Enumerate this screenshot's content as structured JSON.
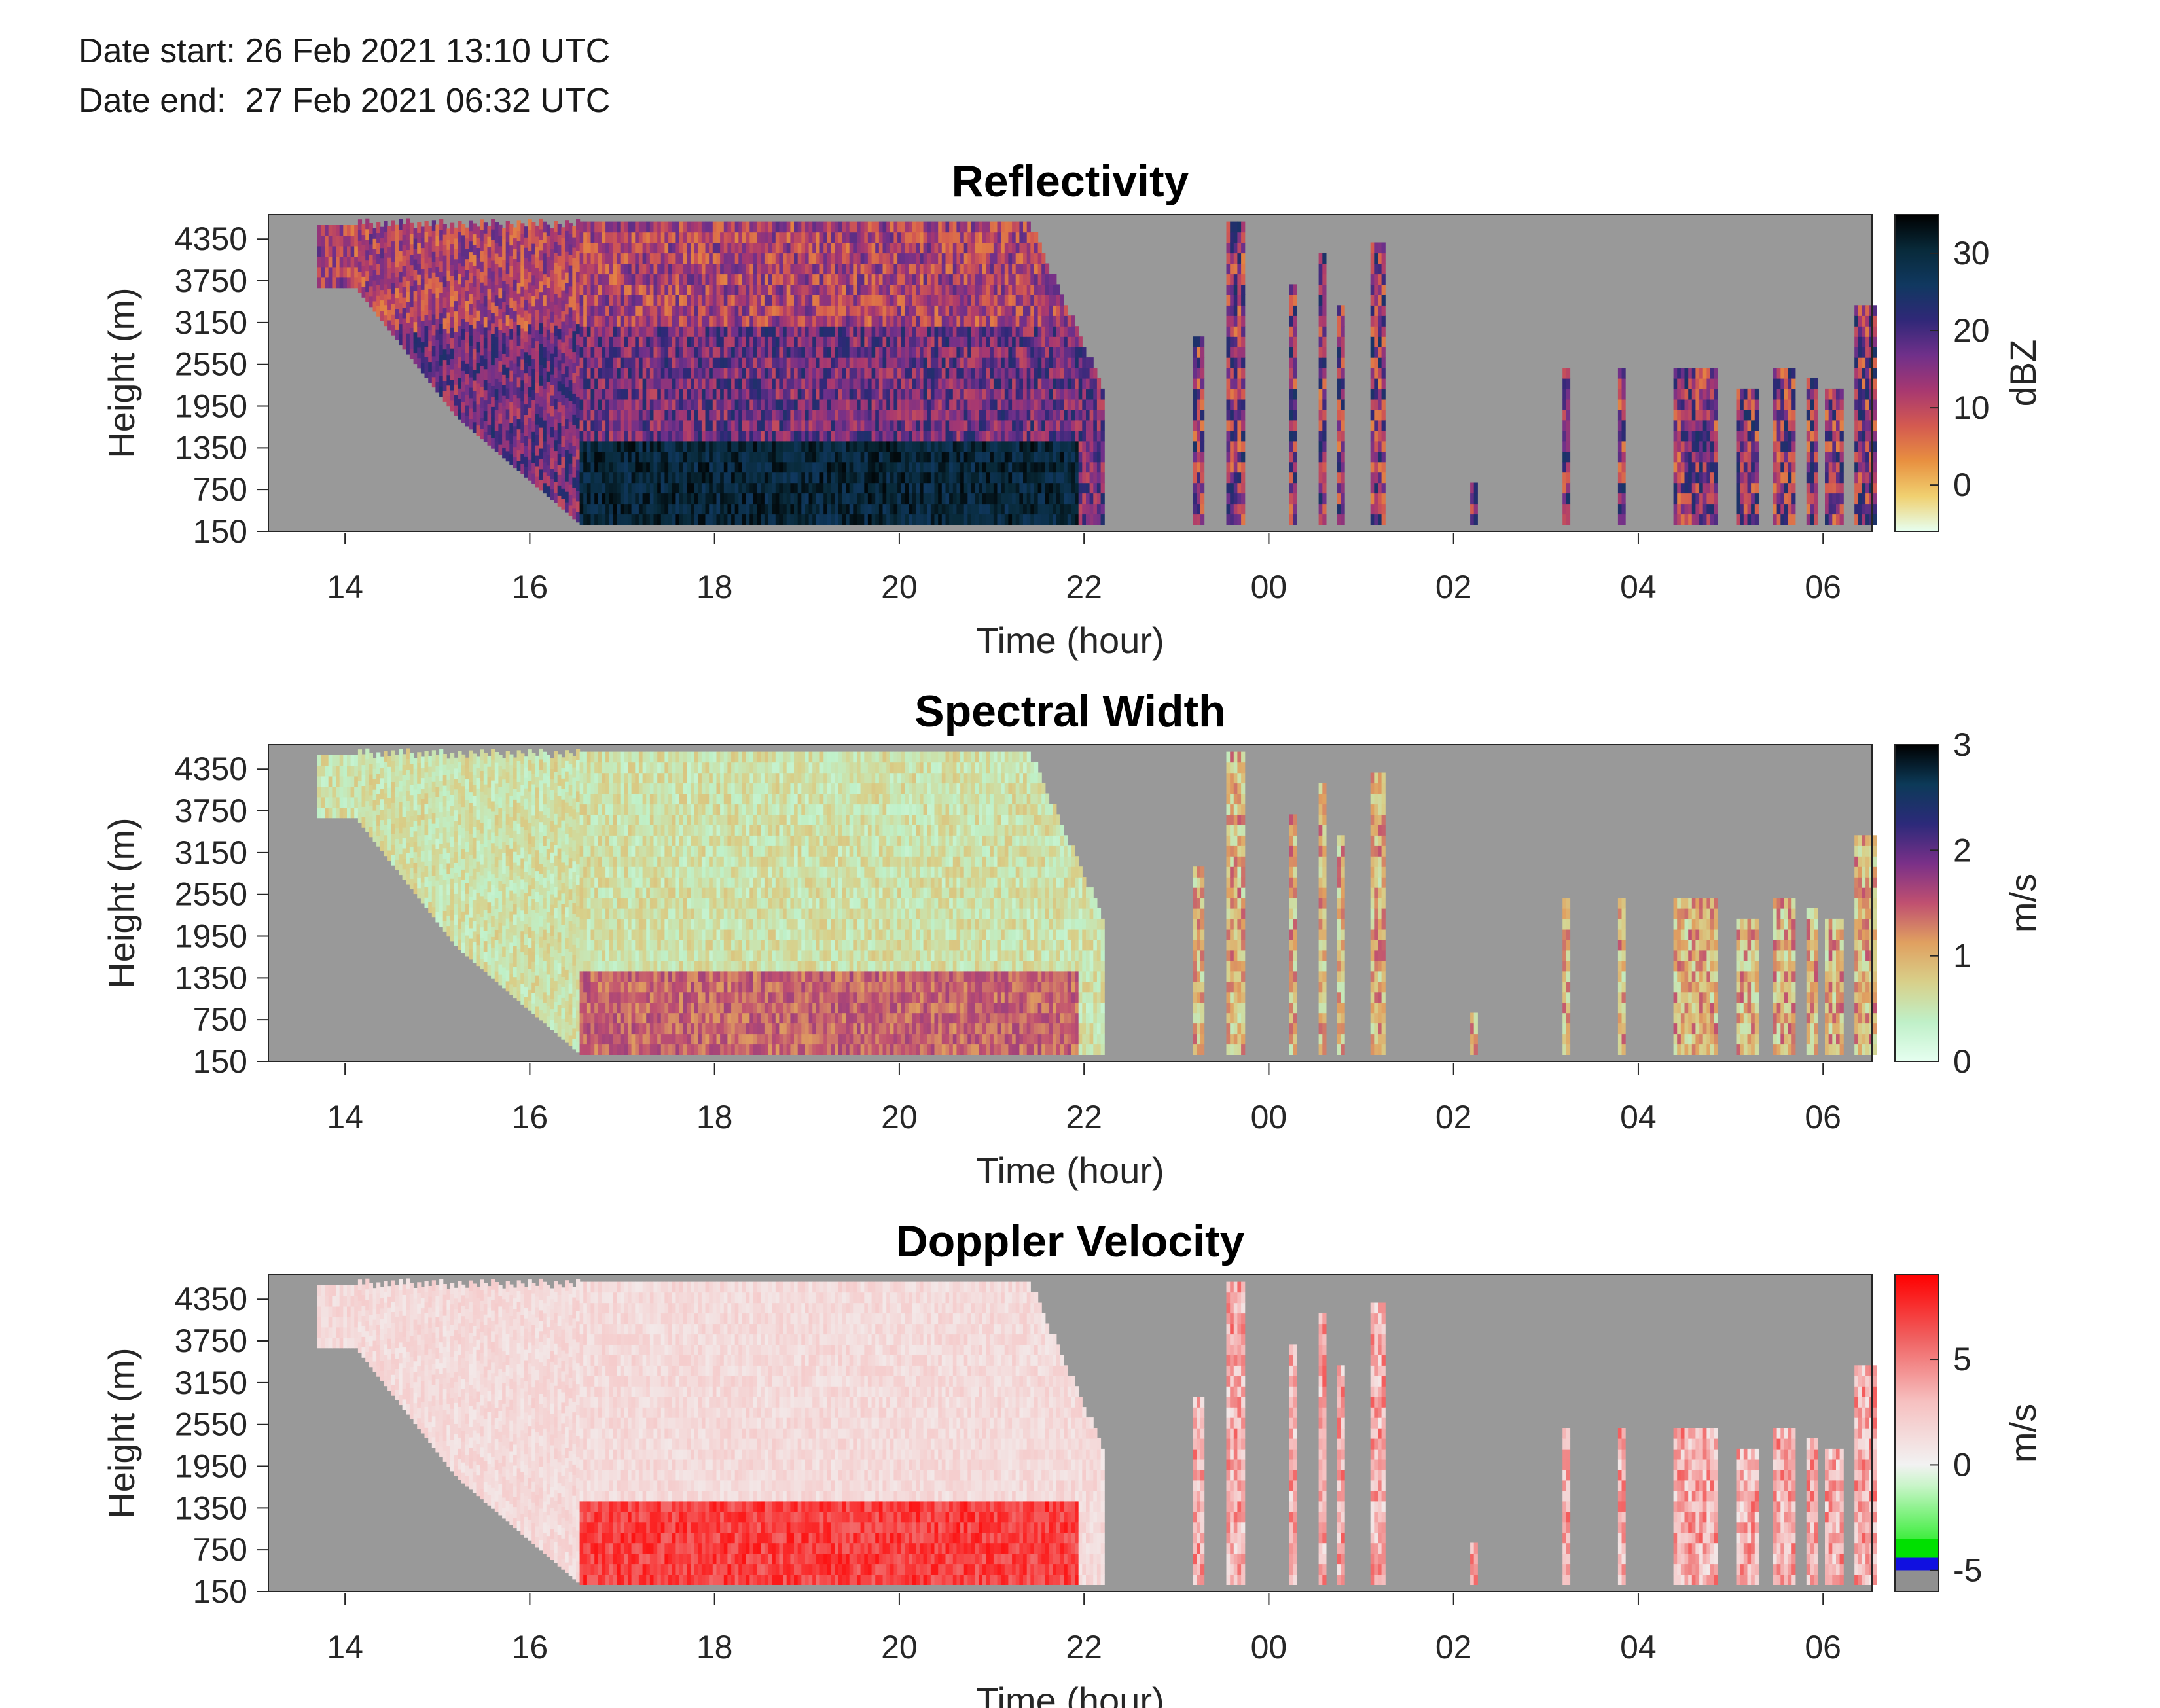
{
  "header": {
    "date_start": "Date start: 26 Feb 2021 13:10 UTC",
    "date_end": "Date end:  27 Feb 2021 06:32 UTC"
  },
  "colors": {
    "axes_background": "#999999",
    "reflectivity_colormap": [
      "#e6fff0",
      "#f0d070",
      "#e89040",
      "#d45a50",
      "#a83870",
      "#70308a",
      "#302878",
      "#103860",
      "#082a3a",
      "#000000"
    ],
    "spectral_width_colormap": [
      "#e6fff0",
      "#bff0c8",
      "#d8d08a",
      "#e0a060",
      "#c05070",
      "#7a3088",
      "#2c2a7a",
      "#0c3a58",
      "#000000"
    ],
    "doppler_colormap": [
      "#909090",
      "#1010e0",
      "#00e000",
      "#a0f0a0",
      "#f2f2f2",
      "#f6c0c0",
      "#f08080",
      "#ff0000"
    ]
  },
  "chart_data": [
    {
      "type": "heatmap",
      "title": "Reflectivity",
      "xlabel": "Time (hour)",
      "ylabel": "Height (m)",
      "x_ticks": [
        "14",
        "16",
        "18",
        "20",
        "22",
        "00",
        "02",
        "04",
        "06"
      ],
      "y_ticks": [
        "150",
        "750",
        "1350",
        "1950",
        "2550",
        "3150",
        "3750",
        "4350"
      ],
      "xlim_hours": [
        13.17,
        30.53
      ],
      "ylim_m": [
        150,
        4700
      ],
      "colorbar": {
        "label": "dBZ",
        "ticks": [
          "0",
          "10",
          "20",
          "30"
        ],
        "range": [
          -6,
          35
        ]
      },
      "echo_layers": [
        {
          "t0": 13.7,
          "t1": 22.2,
          "top_m": 4500,
          "base_m": 250,
          "median_dbz": 12
        },
        {
          "t0": 16.5,
          "t1": 21.9,
          "top_m": 1450,
          "base_m": 250,
          "median_dbz": 28
        },
        {
          "t0": 22.9,
          "t1": 30.0,
          "top_m": 4500,
          "base_m": 250,
          "median_dbz": 10
        }
      ]
    },
    {
      "type": "heatmap",
      "title": "Spectral Width",
      "xlabel": "Time (hour)",
      "ylabel": "Height (m)",
      "x_ticks": [
        "14",
        "16",
        "18",
        "20",
        "22",
        "00",
        "02",
        "04",
        "06"
      ],
      "y_ticks": [
        "150",
        "750",
        "1350",
        "1950",
        "2550",
        "3150",
        "3750",
        "4350"
      ],
      "xlim_hours": [
        13.17,
        30.53
      ],
      "ylim_m": [
        150,
        4700
      ],
      "colorbar": {
        "label": "m/s",
        "ticks": [
          "0",
          "1",
          "2",
          "3"
        ],
        "range": [
          0,
          3
        ]
      },
      "echo_layers": [
        {
          "t0": 13.7,
          "t1": 22.2,
          "top_m": 4500,
          "base_m": 250,
          "median_ms": 0.3
        },
        {
          "t0": 16.5,
          "t1": 21.9,
          "top_m": 1450,
          "base_m": 250,
          "median_ms": 1.3
        },
        {
          "t0": 22.9,
          "t1": 30.0,
          "top_m": 4500,
          "base_m": 250,
          "median_ms": 0.9
        }
      ]
    },
    {
      "type": "heatmap",
      "title": "Doppler Velocity",
      "xlabel": "Time (hour)",
      "ylabel": "Height (m)",
      "x_ticks": [
        "14",
        "16",
        "18",
        "20",
        "22",
        "00",
        "02",
        "04",
        "06"
      ],
      "y_ticks": [
        "150",
        "750",
        "1350",
        "1950",
        "2550",
        "3150",
        "3750",
        "4350"
      ],
      "xlim_hours": [
        13.17,
        30.53
      ],
      "ylim_m": [
        150,
        4700
      ],
      "colorbar": {
        "label": "m/s",
        "ticks": [
          "-5",
          "0",
          "5"
        ],
        "range": [
          -6,
          9
        ]
      },
      "echo_layers": [
        {
          "t0": 13.7,
          "t1": 22.2,
          "top_m": 4500,
          "base_m": 250,
          "median_ms": 1.5
        },
        {
          "t0": 16.2,
          "t1": 22.1,
          "top_m": 1350,
          "base_m": 250,
          "median_ms": 6.5
        },
        {
          "t0": 22.9,
          "t1": 30.0,
          "top_m": 4500,
          "base_m": 250,
          "median_ms": 3.0
        }
      ]
    }
  ]
}
